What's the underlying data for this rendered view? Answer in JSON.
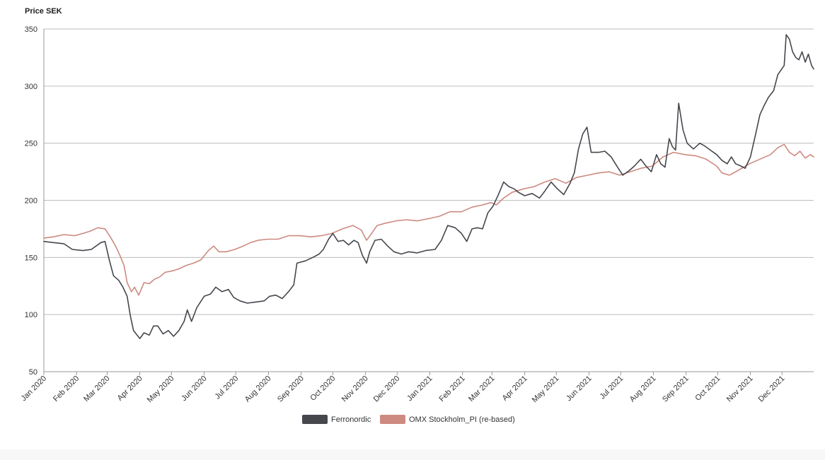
{
  "chart_data": {
    "type": "line",
    "ylabel": "Price SEK",
    "ylim": [
      50,
      350
    ],
    "y_ticks": [
      50,
      100,
      150,
      200,
      250,
      300,
      350
    ],
    "x_range": [
      "2020-01-01",
      "2021-12-31"
    ],
    "x_ticks": [
      {
        "date": "2020-01-01",
        "label": "Jan 2020"
      },
      {
        "date": "2020-02-01",
        "label": "Feb 2020"
      },
      {
        "date": "2020-03-01",
        "label": "Mar 2020"
      },
      {
        "date": "2020-04-01",
        "label": "Apr 2020"
      },
      {
        "date": "2020-05-01",
        "label": "May 2020"
      },
      {
        "date": "2020-06-01",
        "label": "Jun 2020"
      },
      {
        "date": "2020-07-01",
        "label": "Jul 2020"
      },
      {
        "date": "2020-08-01",
        "label": "Aug 2020"
      },
      {
        "date": "2020-09-01",
        "label": "Sep 2020"
      },
      {
        "date": "2020-10-01",
        "label": "Oct 2020"
      },
      {
        "date": "2020-11-01",
        "label": "Nov 2020"
      },
      {
        "date": "2020-12-01",
        "label": "Dec 2020"
      },
      {
        "date": "2021-01-01",
        "label": "Jan 2021"
      },
      {
        "date": "2021-02-01",
        "label": "Feb 2021"
      },
      {
        "date": "2021-03-01",
        "label": "Mar 2021"
      },
      {
        "date": "2021-04-01",
        "label": "Apr 2021"
      },
      {
        "date": "2021-05-01",
        "label": "May 2021"
      },
      {
        "date": "2021-06-01",
        "label": "Jun 2021"
      },
      {
        "date": "2021-07-01",
        "label": "Jul 2021"
      },
      {
        "date": "2021-08-01",
        "label": "Aug 2021"
      },
      {
        "date": "2021-09-01",
        "label": "Sep 2021"
      },
      {
        "date": "2021-10-01",
        "label": "Oct 2021"
      },
      {
        "date": "2021-11-01",
        "label": "Nov 2021"
      },
      {
        "date": "2021-12-01",
        "label": "Dec 2021"
      }
    ],
    "grid": true,
    "legend_position": "bottom-center",
    "series": [
      {
        "name": "Ferronordic",
        "color": "#45474d",
        "points": [
          [
            "2020-01-01",
            164
          ],
          [
            "2020-01-10",
            163
          ],
          [
            "2020-01-20",
            162
          ],
          [
            "2020-01-28",
            157
          ],
          [
            "2020-02-07",
            156
          ],
          [
            "2020-02-15",
            157
          ],
          [
            "2020-02-24",
            163
          ],
          [
            "2020-02-28",
            164
          ],
          [
            "2020-03-03",
            148
          ],
          [
            "2020-03-07",
            134
          ],
          [
            "2020-03-12",
            130
          ],
          [
            "2020-03-16",
            124
          ],
          [
            "2020-03-20",
            116
          ],
          [
            "2020-03-23",
            99
          ],
          [
            "2020-03-26",
            86
          ],
          [
            "2020-04-01",
            79
          ],
          [
            "2020-04-05",
            84
          ],
          [
            "2020-04-10",
            82
          ],
          [
            "2020-04-14",
            90
          ],
          [
            "2020-04-18",
            90
          ],
          [
            "2020-04-23",
            83
          ],
          [
            "2020-04-28",
            86
          ],
          [
            "2020-05-03",
            81
          ],
          [
            "2020-05-08",
            86
          ],
          [
            "2020-05-13",
            94
          ],
          [
            "2020-05-16",
            104
          ],
          [
            "2020-05-20",
            94
          ],
          [
            "2020-05-25",
            106
          ],
          [
            "2020-06-01",
            116
          ],
          [
            "2020-06-07",
            118
          ],
          [
            "2020-06-12",
            124
          ],
          [
            "2020-06-18",
            120
          ],
          [
            "2020-06-24",
            122
          ],
          [
            "2020-06-29",
            115
          ],
          [
            "2020-07-05",
            112
          ],
          [
            "2020-07-12",
            110
          ],
          [
            "2020-07-20",
            111
          ],
          [
            "2020-07-28",
            112
          ],
          [
            "2020-08-02",
            116
          ],
          [
            "2020-08-08",
            117
          ],
          [
            "2020-08-14",
            114
          ],
          [
            "2020-08-20",
            120
          ],
          [
            "2020-08-25",
            126
          ],
          [
            "2020-08-28",
            145
          ],
          [
            "2020-09-05",
            147
          ],
          [
            "2020-09-12",
            150
          ],
          [
            "2020-09-18",
            153
          ],
          [
            "2020-09-22",
            157
          ],
          [
            "2020-09-27",
            166
          ],
          [
            "2020-10-01",
            171
          ],
          [
            "2020-10-06",
            164
          ],
          [
            "2020-10-11",
            165
          ],
          [
            "2020-10-16",
            161
          ],
          [
            "2020-10-21",
            165
          ],
          [
            "2020-10-25",
            163
          ],
          [
            "2020-10-29",
            152
          ],
          [
            "2020-11-02",
            145
          ],
          [
            "2020-11-05",
            155
          ],
          [
            "2020-11-10",
            165
          ],
          [
            "2020-11-16",
            166
          ],
          [
            "2020-11-22",
            160
          ],
          [
            "2020-11-28",
            155
          ],
          [
            "2020-12-05",
            153
          ],
          [
            "2020-12-12",
            155
          ],
          [
            "2020-12-20",
            154
          ],
          [
            "2020-12-28",
            156
          ],
          [
            "2021-01-06",
            157
          ],
          [
            "2021-01-12",
            165
          ],
          [
            "2021-01-18",
            178
          ],
          [
            "2021-01-25",
            176
          ],
          [
            "2021-01-31",
            171
          ],
          [
            "2021-02-05",
            164
          ],
          [
            "2021-02-10",
            175
          ],
          [
            "2021-02-15",
            176
          ],
          [
            "2021-02-20",
            175
          ],
          [
            "2021-02-25",
            189
          ],
          [
            "2021-03-02",
            195
          ],
          [
            "2021-03-07",
            205
          ],
          [
            "2021-03-12",
            216
          ],
          [
            "2021-03-17",
            212
          ],
          [
            "2021-03-22",
            210
          ],
          [
            "2021-03-26",
            207
          ],
          [
            "2021-04-01",
            204
          ],
          [
            "2021-04-08",
            206
          ],
          [
            "2021-04-15",
            202
          ],
          [
            "2021-04-20",
            208
          ],
          [
            "2021-04-26",
            216
          ],
          [
            "2021-05-02",
            210
          ],
          [
            "2021-05-08",
            205
          ],
          [
            "2021-05-14",
            215
          ],
          [
            "2021-05-18",
            224
          ],
          [
            "2021-05-22",
            245
          ],
          [
            "2021-05-26",
            258
          ],
          [
            "2021-05-30",
            264
          ],
          [
            "2021-06-03",
            242
          ],
          [
            "2021-06-10",
            242
          ],
          [
            "2021-06-16",
            243
          ],
          [
            "2021-06-22",
            238
          ],
          [
            "2021-06-28",
            229
          ],
          [
            "2021-07-03",
            222
          ],
          [
            "2021-07-09",
            226
          ],
          [
            "2021-07-14",
            230
          ],
          [
            "2021-07-20",
            236
          ],
          [
            "2021-07-25",
            230
          ],
          [
            "2021-07-30",
            225
          ],
          [
            "2021-08-04",
            240
          ],
          [
            "2021-08-08",
            232
          ],
          [
            "2021-08-12",
            229
          ],
          [
            "2021-08-16",
            254
          ],
          [
            "2021-08-19",
            247
          ],
          [
            "2021-08-22",
            244
          ],
          [
            "2021-08-25",
            285
          ],
          [
            "2021-08-29",
            262
          ],
          [
            "2021-09-02",
            250
          ],
          [
            "2021-09-08",
            245
          ],
          [
            "2021-09-14",
            250
          ],
          [
            "2021-09-18",
            248
          ],
          [
            "2021-09-24",
            244
          ],
          [
            "2021-09-30",
            240
          ],
          [
            "2021-10-05",
            235
          ],
          [
            "2021-10-10",
            232
          ],
          [
            "2021-10-14",
            238
          ],
          [
            "2021-10-18",
            232
          ],
          [
            "2021-10-23",
            230
          ],
          [
            "2021-10-27",
            228
          ],
          [
            "2021-11-01",
            238
          ],
          [
            "2021-11-06",
            258
          ],
          [
            "2021-11-10",
            275
          ],
          [
            "2021-11-14",
            283
          ],
          [
            "2021-11-18",
            290
          ],
          [
            "2021-11-23",
            296
          ],
          [
            "2021-11-27",
            310
          ],
          [
            "2021-11-30",
            314
          ],
          [
            "2021-12-03",
            318
          ],
          [
            "2021-12-05",
            345
          ],
          [
            "2021-12-08",
            341
          ],
          [
            "2021-12-11",
            330
          ],
          [
            "2021-12-14",
            325
          ],
          [
            "2021-12-17",
            323
          ],
          [
            "2021-12-20",
            330
          ],
          [
            "2021-12-23",
            321
          ],
          [
            "2021-12-26",
            328
          ],
          [
            "2021-12-29",
            318
          ],
          [
            "2021-12-31",
            315
          ]
        ]
      },
      {
        "name": "OMX Stockholm_PI (re-based)",
        "color": "#cd8a80",
        "points": [
          [
            "2020-01-01",
            167
          ],
          [
            "2020-01-10",
            168
          ],
          [
            "2020-01-20",
            170
          ],
          [
            "2020-01-30",
            169
          ],
          [
            "2020-02-07",
            171
          ],
          [
            "2020-02-14",
            173
          ],
          [
            "2020-02-21",
            176
          ],
          [
            "2020-02-28",
            175
          ],
          [
            "2020-03-04",
            168
          ],
          [
            "2020-03-09",
            160
          ],
          [
            "2020-03-13",
            152
          ],
          [
            "2020-03-17",
            143
          ],
          [
            "2020-03-20",
            128
          ],
          [
            "2020-03-24",
            120
          ],
          [
            "2020-03-27",
            124
          ],
          [
            "2020-03-31",
            117
          ],
          [
            "2020-04-05",
            128
          ],
          [
            "2020-04-10",
            127
          ],
          [
            "2020-04-15",
            131
          ],
          [
            "2020-04-20",
            133
          ],
          [
            "2020-04-25",
            137
          ],
          [
            "2020-05-01",
            138
          ],
          [
            "2020-05-08",
            140
          ],
          [
            "2020-05-15",
            143
          ],
          [
            "2020-05-22",
            145
          ],
          [
            "2020-05-29",
            148
          ],
          [
            "2020-06-05",
            156
          ],
          [
            "2020-06-10",
            160
          ],
          [
            "2020-06-15",
            155
          ],
          [
            "2020-06-22",
            155
          ],
          [
            "2020-06-30",
            157
          ],
          [
            "2020-07-08",
            160
          ],
          [
            "2020-07-15",
            163
          ],
          [
            "2020-07-22",
            165
          ],
          [
            "2020-07-31",
            166
          ],
          [
            "2020-08-10",
            166
          ],
          [
            "2020-08-20",
            169
          ],
          [
            "2020-08-31",
            169
          ],
          [
            "2020-09-10",
            168
          ],
          [
            "2020-09-20",
            169
          ],
          [
            "2020-09-30",
            171
          ],
          [
            "2020-10-10",
            175
          ],
          [
            "2020-10-20",
            178
          ],
          [
            "2020-10-28",
            174
          ],
          [
            "2020-11-02",
            165
          ],
          [
            "2020-11-06",
            170
          ],
          [
            "2020-11-12",
            178
          ],
          [
            "2020-11-20",
            180
          ],
          [
            "2020-11-30",
            182
          ],
          [
            "2020-12-10",
            183
          ],
          [
            "2020-12-20",
            182
          ],
          [
            "2020-12-31",
            184
          ],
          [
            "2021-01-10",
            186
          ],
          [
            "2021-01-20",
            190
          ],
          [
            "2021-01-31",
            190
          ],
          [
            "2021-02-10",
            194
          ],
          [
            "2021-02-20",
            196
          ],
          [
            "2021-02-28",
            198
          ],
          [
            "2021-03-05",
            196
          ],
          [
            "2021-03-12",
            202
          ],
          [
            "2021-03-20",
            207
          ],
          [
            "2021-03-31",
            210
          ],
          [
            "2021-04-10",
            212
          ],
          [
            "2021-04-20",
            216
          ],
          [
            "2021-04-30",
            219
          ],
          [
            "2021-05-10",
            215
          ],
          [
            "2021-05-20",
            220
          ],
          [
            "2021-05-31",
            222
          ],
          [
            "2021-06-10",
            224
          ],
          [
            "2021-06-20",
            225
          ],
          [
            "2021-06-30",
            222
          ],
          [
            "2021-07-10",
            225
          ],
          [
            "2021-07-20",
            228
          ],
          [
            "2021-07-31",
            230
          ],
          [
            "2021-08-10",
            238
          ],
          [
            "2021-08-20",
            242
          ],
          [
            "2021-08-31",
            240
          ],
          [
            "2021-09-10",
            239
          ],
          [
            "2021-09-20",
            236
          ],
          [
            "2021-09-30",
            230
          ],
          [
            "2021-10-05",
            224
          ],
          [
            "2021-10-12",
            222
          ],
          [
            "2021-10-20",
            226
          ],
          [
            "2021-10-31",
            232
          ],
          [
            "2021-11-10",
            236
          ],
          [
            "2021-11-20",
            240
          ],
          [
            "2021-11-27",
            246
          ],
          [
            "2021-12-03",
            249
          ],
          [
            "2021-12-08",
            242
          ],
          [
            "2021-12-13",
            239
          ],
          [
            "2021-12-18",
            243
          ],
          [
            "2021-12-23",
            237
          ],
          [
            "2021-12-28",
            240
          ],
          [
            "2021-12-31",
            238
          ]
        ]
      }
    ]
  }
}
